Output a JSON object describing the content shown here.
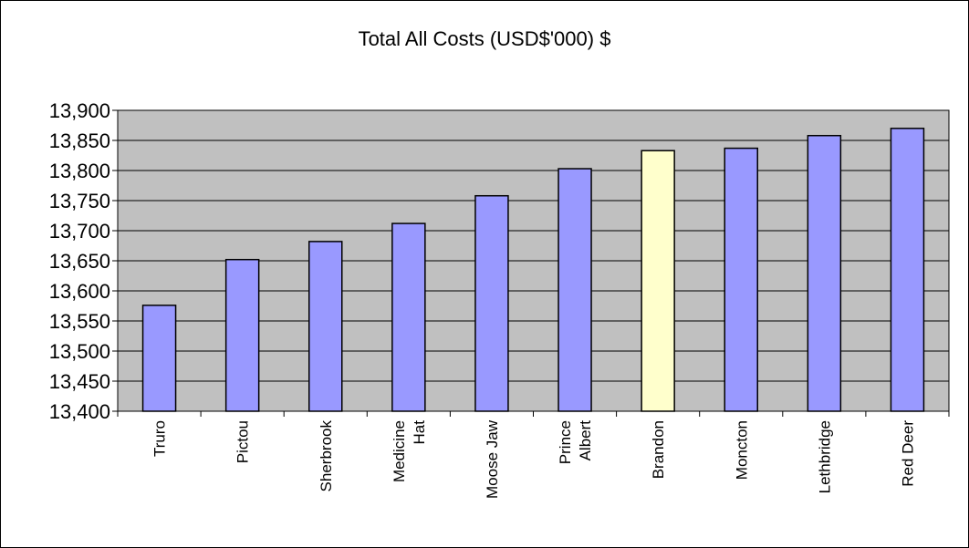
{
  "chart_data": {
    "type": "bar",
    "title": "Total All Costs (USD$'000) $",
    "xlabel": "",
    "ylabel": "",
    "categories": [
      [
        "Truro"
      ],
      [
        "Pictou"
      ],
      [
        "Sherbrook"
      ],
      [
        "Medicine",
        "Hat"
      ],
      [
        "Moose Jaw"
      ],
      [
        "Prince",
        "Albert"
      ],
      [
        "Brandon"
      ],
      [
        "Moncton"
      ],
      [
        "Lethbridge"
      ],
      [
        "Red Deer"
      ]
    ],
    "values": [
      13576,
      13652,
      13682,
      13712,
      13758,
      13803,
      13833,
      13837,
      13858,
      13870
    ],
    "highlight_index": 6,
    "colors": {
      "bar": "#9999ff",
      "highlight": "#ffffcc",
      "plot_bg": "#c0c0c0",
      "grid": "#000000"
    },
    "ylim": [
      13400,
      13900
    ],
    "yticks": [
      "13,400",
      "13,450",
      "13,500",
      "13,550",
      "13,600",
      "13,650",
      "13,700",
      "13,750",
      "13,800",
      "13,850",
      "13,900"
    ],
    "ytick_values": [
      13400,
      13450,
      13500,
      13550,
      13600,
      13650,
      13700,
      13750,
      13800,
      13850,
      13900
    ],
    "grid": true,
    "legend": "none"
  }
}
